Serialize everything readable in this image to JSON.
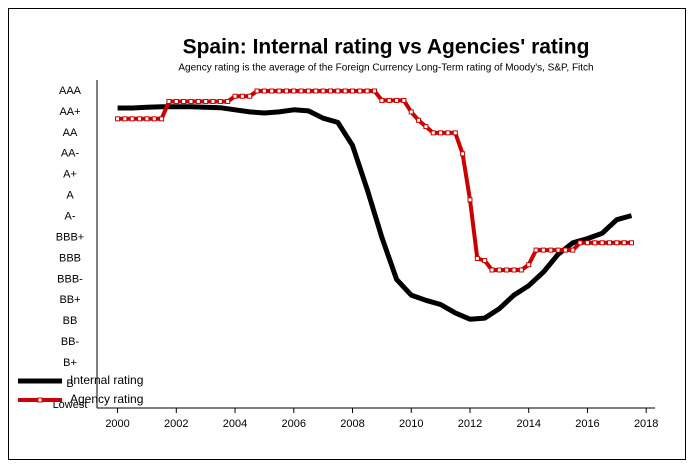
{
  "chart_data": {
    "type": "line",
    "title": "Spain: Internal rating vs Agencies' rating",
    "subtitle": "Agency rating is the average of the Foreign Currency Long-Term rating of Moody's, S&P, Fitch",
    "xlim": [
      1999.3,
      2018.3
    ],
    "xticks": [
      2000,
      2002,
      2004,
      2006,
      2008,
      2010,
      2012,
      2014,
      2016,
      2018
    ],
    "ylim": [
      0,
      15
    ],
    "yticks": [
      {
        "value": 0,
        "label": "Lowest"
      },
      {
        "value": 1,
        "label": "B"
      },
      {
        "value": 2,
        "label": "B+"
      },
      {
        "value": 3,
        "label": "BB-"
      },
      {
        "value": 4,
        "label": "BB"
      },
      {
        "value": 5,
        "label": "BB+"
      },
      {
        "value": 6,
        "label": "BBB-"
      },
      {
        "value": 7,
        "label": "BBB"
      },
      {
        "value": 8,
        "label": "BBB+"
      },
      {
        "value": 9,
        "label": "A-"
      },
      {
        "value": 10,
        "label": "A"
      },
      {
        "value": 11,
        "label": "A+"
      },
      {
        "value": 12,
        "label": "AA-"
      },
      {
        "value": 13,
        "label": "AA"
      },
      {
        "value": 14,
        "label": "AA+"
      },
      {
        "value": 15,
        "label": "AAA"
      }
    ],
    "legend": "lower left",
    "series": [
      {
        "name": "Internal rating",
        "color": "#000000",
        "markers": false,
        "x": [
          2000,
          2000.5,
          2001,
          2001.5,
          2002,
          2002.5,
          2003,
          2003.5,
          2004,
          2004.5,
          2005,
          2005.5,
          2006,
          2006.5,
          2007,
          2007.5,
          2008,
          2008.5,
          2009,
          2009.5,
          2010,
          2010.5,
          2011,
          2011.5,
          2012,
          2012.5,
          2013,
          2013.5,
          2014,
          2014.5,
          2015,
          2015.5,
          2016,
          2016.5,
          2017,
          2017.5
        ],
        "values": [
          14.19,
          14.19,
          14.22,
          14.25,
          14.25,
          14.25,
          14.22,
          14.2,
          14.1,
          14.0,
          13.95,
          14.0,
          14.1,
          14.05,
          13.7,
          13.5,
          12.4,
          10.3,
          8.0,
          6.0,
          5.25,
          5.0,
          4.8,
          4.4,
          4.1,
          4.15,
          4.6,
          5.25,
          5.7,
          6.35,
          7.2,
          7.75,
          7.95,
          8.2,
          8.85,
          9.05
        ]
      },
      {
        "name": "Agency rating",
        "color": "#cc0000",
        "markers": true,
        "x": [
          2000,
          2000.25,
          2000.5,
          2000.75,
          2001,
          2001.25,
          2001.5,
          2001.75,
          2002,
          2002.25,
          2002.5,
          2002.75,
          2003,
          2003.25,
          2003.5,
          2003.75,
          2004,
          2004.25,
          2004.5,
          2004.75,
          2005,
          2005.25,
          2005.5,
          2005.75,
          2006,
          2006.25,
          2006.5,
          2006.75,
          2007,
          2007.25,
          2007.5,
          2007.75,
          2008,
          2008.25,
          2008.5,
          2008.75,
          2009,
          2009.25,
          2009.5,
          2009.75,
          2010,
          2010.25,
          2010.5,
          2010.75,
          2011,
          2011.25,
          2011.5,
          2011.75,
          2012,
          2012.25,
          2012.5,
          2012.75,
          2013,
          2013.25,
          2013.5,
          2013.75,
          2014,
          2014.25,
          2014.5,
          2014.75,
          2015,
          2015.25,
          2015.5,
          2015.75,
          2016,
          2016.25,
          2016.5,
          2016.75,
          2017,
          2017.25,
          2017.5
        ],
        "values": [
          13.67,
          13.67,
          13.67,
          13.67,
          13.67,
          13.67,
          13.67,
          14.5,
          14.5,
          14.5,
          14.5,
          14.5,
          14.5,
          14.5,
          14.5,
          14.5,
          14.75,
          14.75,
          14.75,
          15,
          15,
          15,
          15,
          15,
          15,
          15,
          15,
          15,
          15,
          15,
          15,
          15,
          15,
          15,
          15,
          15,
          14.55,
          14.55,
          14.55,
          14.55,
          14.0,
          13.6,
          13.3,
          13.0,
          13.0,
          13.0,
          13.0,
          12.0,
          9.8,
          7.0,
          6.9,
          6.45,
          6.45,
          6.45,
          6.45,
          6.45,
          6.7,
          7.4,
          7.4,
          7.4,
          7.4,
          7.4,
          7.4,
          7.75,
          7.75,
          7.75,
          7.75,
          7.75,
          7.75,
          7.75,
          7.75
        ]
      }
    ]
  }
}
